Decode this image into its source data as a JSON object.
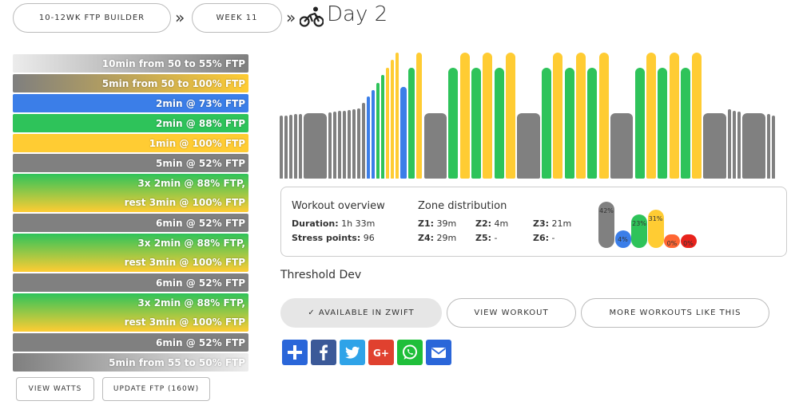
{
  "breadcrumb": {
    "plan": "10-12WK FTP BUILDER",
    "week": "WEEK 11",
    "separator": "»",
    "title": "Day 2"
  },
  "intervals": [
    {
      "lines": [
        "10min from 50 to 55% FTP"
      ],
      "bg": "linear-gradient(to right, #ececec, #7f7f7f)"
    },
    {
      "lines": [
        "5min from 50 to 100% FTP"
      ],
      "bg": "linear-gradient(to right, #7f7f7f, #ffcc33)"
    },
    {
      "lines": [
        "2min @ 73% FTP"
      ],
      "bg": "#3b7ee8"
    },
    {
      "lines": [
        "2min @ 88% FTP"
      ],
      "bg": "#2ec35a"
    },
    {
      "lines": [
        "1min @ 100% FTP"
      ],
      "bg": "#ffcc33"
    },
    {
      "lines": [
        "5min @ 52% FTP"
      ],
      "bg": "#808080"
    },
    {
      "lines": [
        "3x 2min @ 88% FTP,",
        "rest 3min @ 100% FTP"
      ],
      "bg": "linear-gradient(to bottom, #2ec35a, #ffcc33)"
    },
    {
      "lines": [
        "6min @ 52% FTP"
      ],
      "bg": "#808080"
    },
    {
      "lines": [
        "3x 2min @ 88% FTP,",
        "rest 3min @ 100% FTP"
      ],
      "bg": "linear-gradient(to bottom, #2ec35a, #ffcc33)"
    },
    {
      "lines": [
        "6min @ 52% FTP"
      ],
      "bg": "#808080"
    },
    {
      "lines": [
        "3x 2min @ 88% FTP,",
        "rest 3min @ 100% FTP"
      ],
      "bg": "linear-gradient(to bottom, #2ec35a, #ffcc33)"
    },
    {
      "lines": [
        "6min @ 52% FTP"
      ],
      "bg": "#808080"
    },
    {
      "lines": [
        "5min from 55 to 50% FTP"
      ],
      "bg": "linear-gradient(to right, #7f7f7f, #ececec)"
    }
  ],
  "buttons": {
    "view_watts": "VIEW WATTS",
    "update_ftp": "UPDATE FTP (160W)"
  },
  "colors": {
    "recovery": "#808080",
    "endurance": "#3b7ee8",
    "tempo": "#2ec35a",
    "threshold": "#ffcc33",
    "vo2": "#ff6633",
    "anaerobic": "#e8231c"
  },
  "overview": {
    "title": "Workout overview",
    "duration_label": "Duration:",
    "duration_value": "1h 33m",
    "stress_label": "Stress points:",
    "stress_value": "96"
  },
  "zones": {
    "title": "Zone distribution",
    "items": [
      {
        "label": "Z1:",
        "value": "39m"
      },
      {
        "label": "Z2:",
        "value": "4m"
      },
      {
        "label": "Z3:",
        "value": "21m"
      },
      {
        "label": "Z4:",
        "value": "29m"
      },
      {
        "label": "Z5:",
        "value": "-"
      },
      {
        "label": "Z6:",
        "value": "-"
      }
    ],
    "percents": [
      "42%",
      "4%",
      "23%",
      "31%",
      "0%",
      "0%"
    ],
    "levels": [
      0.93,
      0.35,
      0.67,
      0.78,
      0.28,
      0.28
    ],
    "bar_colors": [
      "#808080",
      "#3b7ee8",
      "#2ec35a",
      "#ffcc33",
      "#ff6633",
      "#e8231c"
    ]
  },
  "workout_name": "Threshold Dev",
  "actions": {
    "zwift": "✓ AVAILABLE IN ZWIFT",
    "view_workout": "VIEW WORKOUT",
    "more": "MORE WORKOUTS LIKE THIS"
  },
  "share": [
    {
      "name": "share-icon",
      "color": "#2a66d9"
    },
    {
      "name": "facebook-icon",
      "color": "#3b5998"
    },
    {
      "name": "twitter-icon",
      "color": "#2fa3e8"
    },
    {
      "name": "google-plus-icon",
      "color": "#e0412f"
    },
    {
      "name": "whatsapp-icon",
      "color": "#1fbf3a"
    },
    {
      "name": "email-icon",
      "color": "#2a66d9"
    }
  ],
  "workout_profile": [
    [
      0.5,
      "#808080"
    ],
    [
      0.5,
      "#808080"
    ],
    [
      0.505,
      "#808080"
    ],
    [
      0.51,
      "#808080"
    ],
    [
      0.515,
      "#808080"
    ],
    [
      0.52,
      "#808080"
    ],
    [
      0.525,
      "#808080"
    ],
    [
      0.53,
      "#808080"
    ],
    [
      0.535,
      "#808080"
    ],
    [
      0.54,
      "#808080"
    ],
    [
      0.545,
      "#808080"
    ],
    [
      0.55,
      "#808080"
    ],
    [
      0.56,
      "#808080"
    ],
    [
      0.6,
      "#808080"
    ],
    [
      0.65,
      "#3b7ee8"
    ],
    [
      0.7,
      "#3b7ee8"
    ],
    [
      0.76,
      "#2ec35a"
    ],
    [
      0.82,
      "#2ec35a"
    ],
    [
      0.88,
      "#ffcc33"
    ],
    [
      0.94,
      "#ffcc33"
    ],
    [
      1.0,
      "#ffcc33"
    ],
    [
      0.73,
      "#3b7ee8"
    ],
    [
      0.88,
      "#2ec35a"
    ],
    [
      1.0,
      "#ffcc33"
    ],
    [
      0.52,
      "#808080"
    ],
    [
      0.88,
      "#2ec35a"
    ],
    [
      1.0,
      "#ffcc33"
    ],
    [
      0.88,
      "#2ec35a"
    ],
    [
      1.0,
      "#ffcc33"
    ],
    [
      0.88,
      "#2ec35a"
    ],
    [
      1.0,
      "#ffcc33"
    ],
    [
      0.52,
      "#808080"
    ],
    [
      0.88,
      "#2ec35a"
    ],
    [
      1.0,
      "#ffcc33"
    ],
    [
      0.88,
      "#2ec35a"
    ],
    [
      1.0,
      "#ffcc33"
    ],
    [
      0.88,
      "#2ec35a"
    ],
    [
      1.0,
      "#ffcc33"
    ],
    [
      0.52,
      "#808080"
    ],
    [
      0.88,
      "#2ec35a"
    ],
    [
      1.0,
      "#ffcc33"
    ],
    [
      0.88,
      "#2ec35a"
    ],
    [
      1.0,
      "#ffcc33"
    ],
    [
      0.88,
      "#2ec35a"
    ],
    [
      1.0,
      "#ffcc33"
    ],
    [
      0.52,
      "#808080"
    ],
    [
      0.55,
      "#808080"
    ],
    [
      0.54,
      "#808080"
    ],
    [
      0.53,
      "#808080"
    ],
    [
      0.52,
      "#808080"
    ],
    [
      0.51,
      "#808080"
    ],
    [
      0.5,
      "#808080"
    ]
  ]
}
